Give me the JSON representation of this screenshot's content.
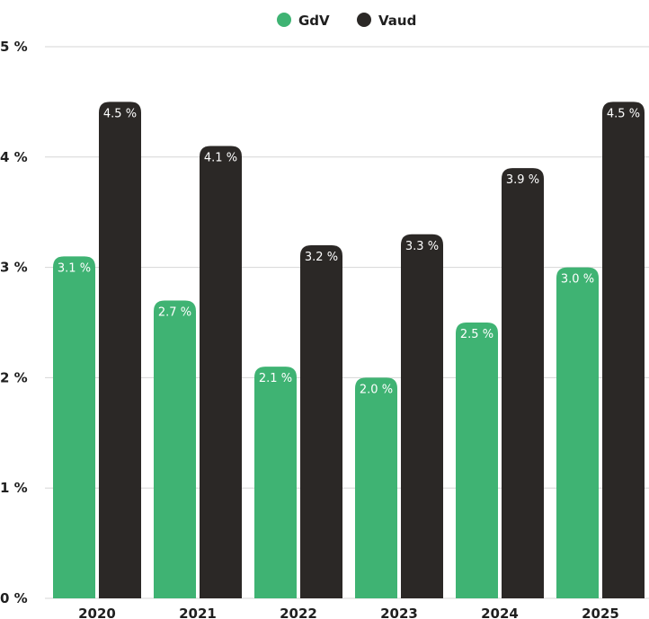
{
  "chart_data": {
    "type": "bar",
    "categories": [
      "2020",
      "2021",
      "2022",
      "2023",
      "2024",
      "2025"
    ],
    "series": [
      {
        "name": "GdV",
        "color": "#3fb373",
        "values": [
          3.1,
          2.7,
          2.1,
          2.0,
          2.5,
          3.0
        ],
        "labels": [
          "3.1 %",
          "2.7 %",
          "2.1 %",
          "2.0 %",
          "2.5 %",
          "3.0 %"
        ]
      },
      {
        "name": "Vaud",
        "color": "#2b2826",
        "values": [
          4.5,
          4.1,
          3.2,
          3.3,
          3.9,
          4.5
        ],
        "labels": [
          "4.5 %",
          "4.1 %",
          "3.2 %",
          "3.3 %",
          "3.9 %",
          "4.5 %"
        ]
      }
    ],
    "yticks": [
      0,
      1,
      2,
      3,
      4,
      5
    ],
    "ytick_labels": [
      "0 %",
      "1 %",
      "2 %",
      "3 %",
      "4 %",
      "5 %"
    ],
    "ylim": [
      0,
      5
    ],
    "grid": true,
    "legend": "top-center",
    "title": "",
    "xlabel": "",
    "ylabel": ""
  }
}
